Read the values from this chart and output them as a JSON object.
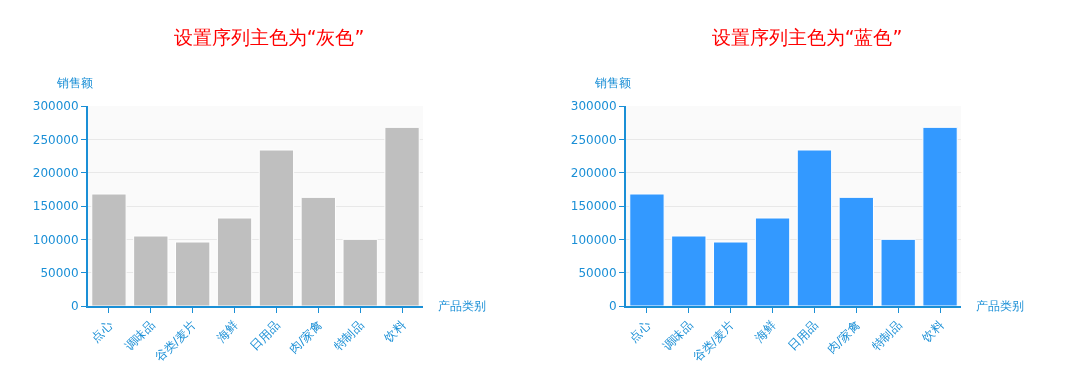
{
  "chart_data": [
    {
      "type": "bar",
      "title": "设置序列主色为“灰色”",
      "xlabel": "产品类别",
      "ylabel": "销售额",
      "categories": [
        "点心",
        "调味品",
        "谷类/麦片",
        "海鲜",
        "日用品",
        "肉/家禽",
        "特制品",
        "饮料"
      ],
      "values": [
        168000,
        105000,
        96000,
        132000,
        234000,
        163000,
        100000,
        268000
      ],
      "color": "#bfbfbf",
      "ylim": [
        0,
        300000
      ],
      "yticks": [
        0,
        50000,
        100000,
        150000,
        200000,
        250000,
        300000
      ],
      "grid": "y",
      "legend": false
    },
    {
      "type": "bar",
      "title": "设置序列主色为“蓝色”",
      "xlabel": "产品类别",
      "ylabel": "销售额",
      "categories": [
        "点心",
        "调味品",
        "谷类/麦片",
        "海鲜",
        "日用品",
        "肉/家禽",
        "特制品",
        "饮料"
      ],
      "values": [
        168000,
        105000,
        96000,
        132000,
        234000,
        163000,
        100000,
        268000
      ],
      "color": "#3399ff",
      "ylim": [
        0,
        300000
      ],
      "yticks": [
        0,
        50000,
        100000,
        150000,
        200000,
        250000,
        300000
      ],
      "grid": "y",
      "legend": false
    }
  ]
}
